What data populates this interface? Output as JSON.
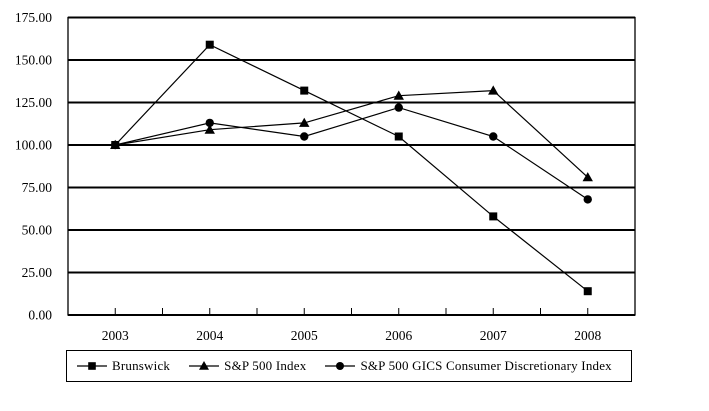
{
  "chart_data": {
    "type": "line",
    "title": "",
    "xlabel": "",
    "ylabel": "",
    "categories": [
      "2003",
      "2004",
      "2005",
      "2006",
      "2007",
      "2008"
    ],
    "series": [
      {
        "name": "Brunswick",
        "marker": "square",
        "color": "#000000",
        "values": [
          100,
          159,
          132,
          105,
          58,
          14
        ]
      },
      {
        "name": "S&P 500 Index",
        "marker": "triangle",
        "color": "#000000",
        "values": [
          100,
          109,
          113,
          129,
          132,
          81
        ]
      },
      {
        "name": "S&P 500 GICS Consumer Discretionary Index",
        "marker": "circle",
        "color": "#000000",
        "values": [
          100,
          113,
          105,
          122,
          105,
          68
        ]
      }
    ],
    "ylim": [
      0,
      175
    ],
    "ytick_step": 25,
    "ytick_labels": [
      "0.00",
      "25.00",
      "50.00",
      "75.00",
      "100.00",
      "125.00",
      "150.00",
      "175.00"
    ],
    "grid": "horizontal-only",
    "legend_position": "bottom-boxed",
    "line_color": "#000000",
    "axis_color": "#000000",
    "background": "#ffffff"
  }
}
